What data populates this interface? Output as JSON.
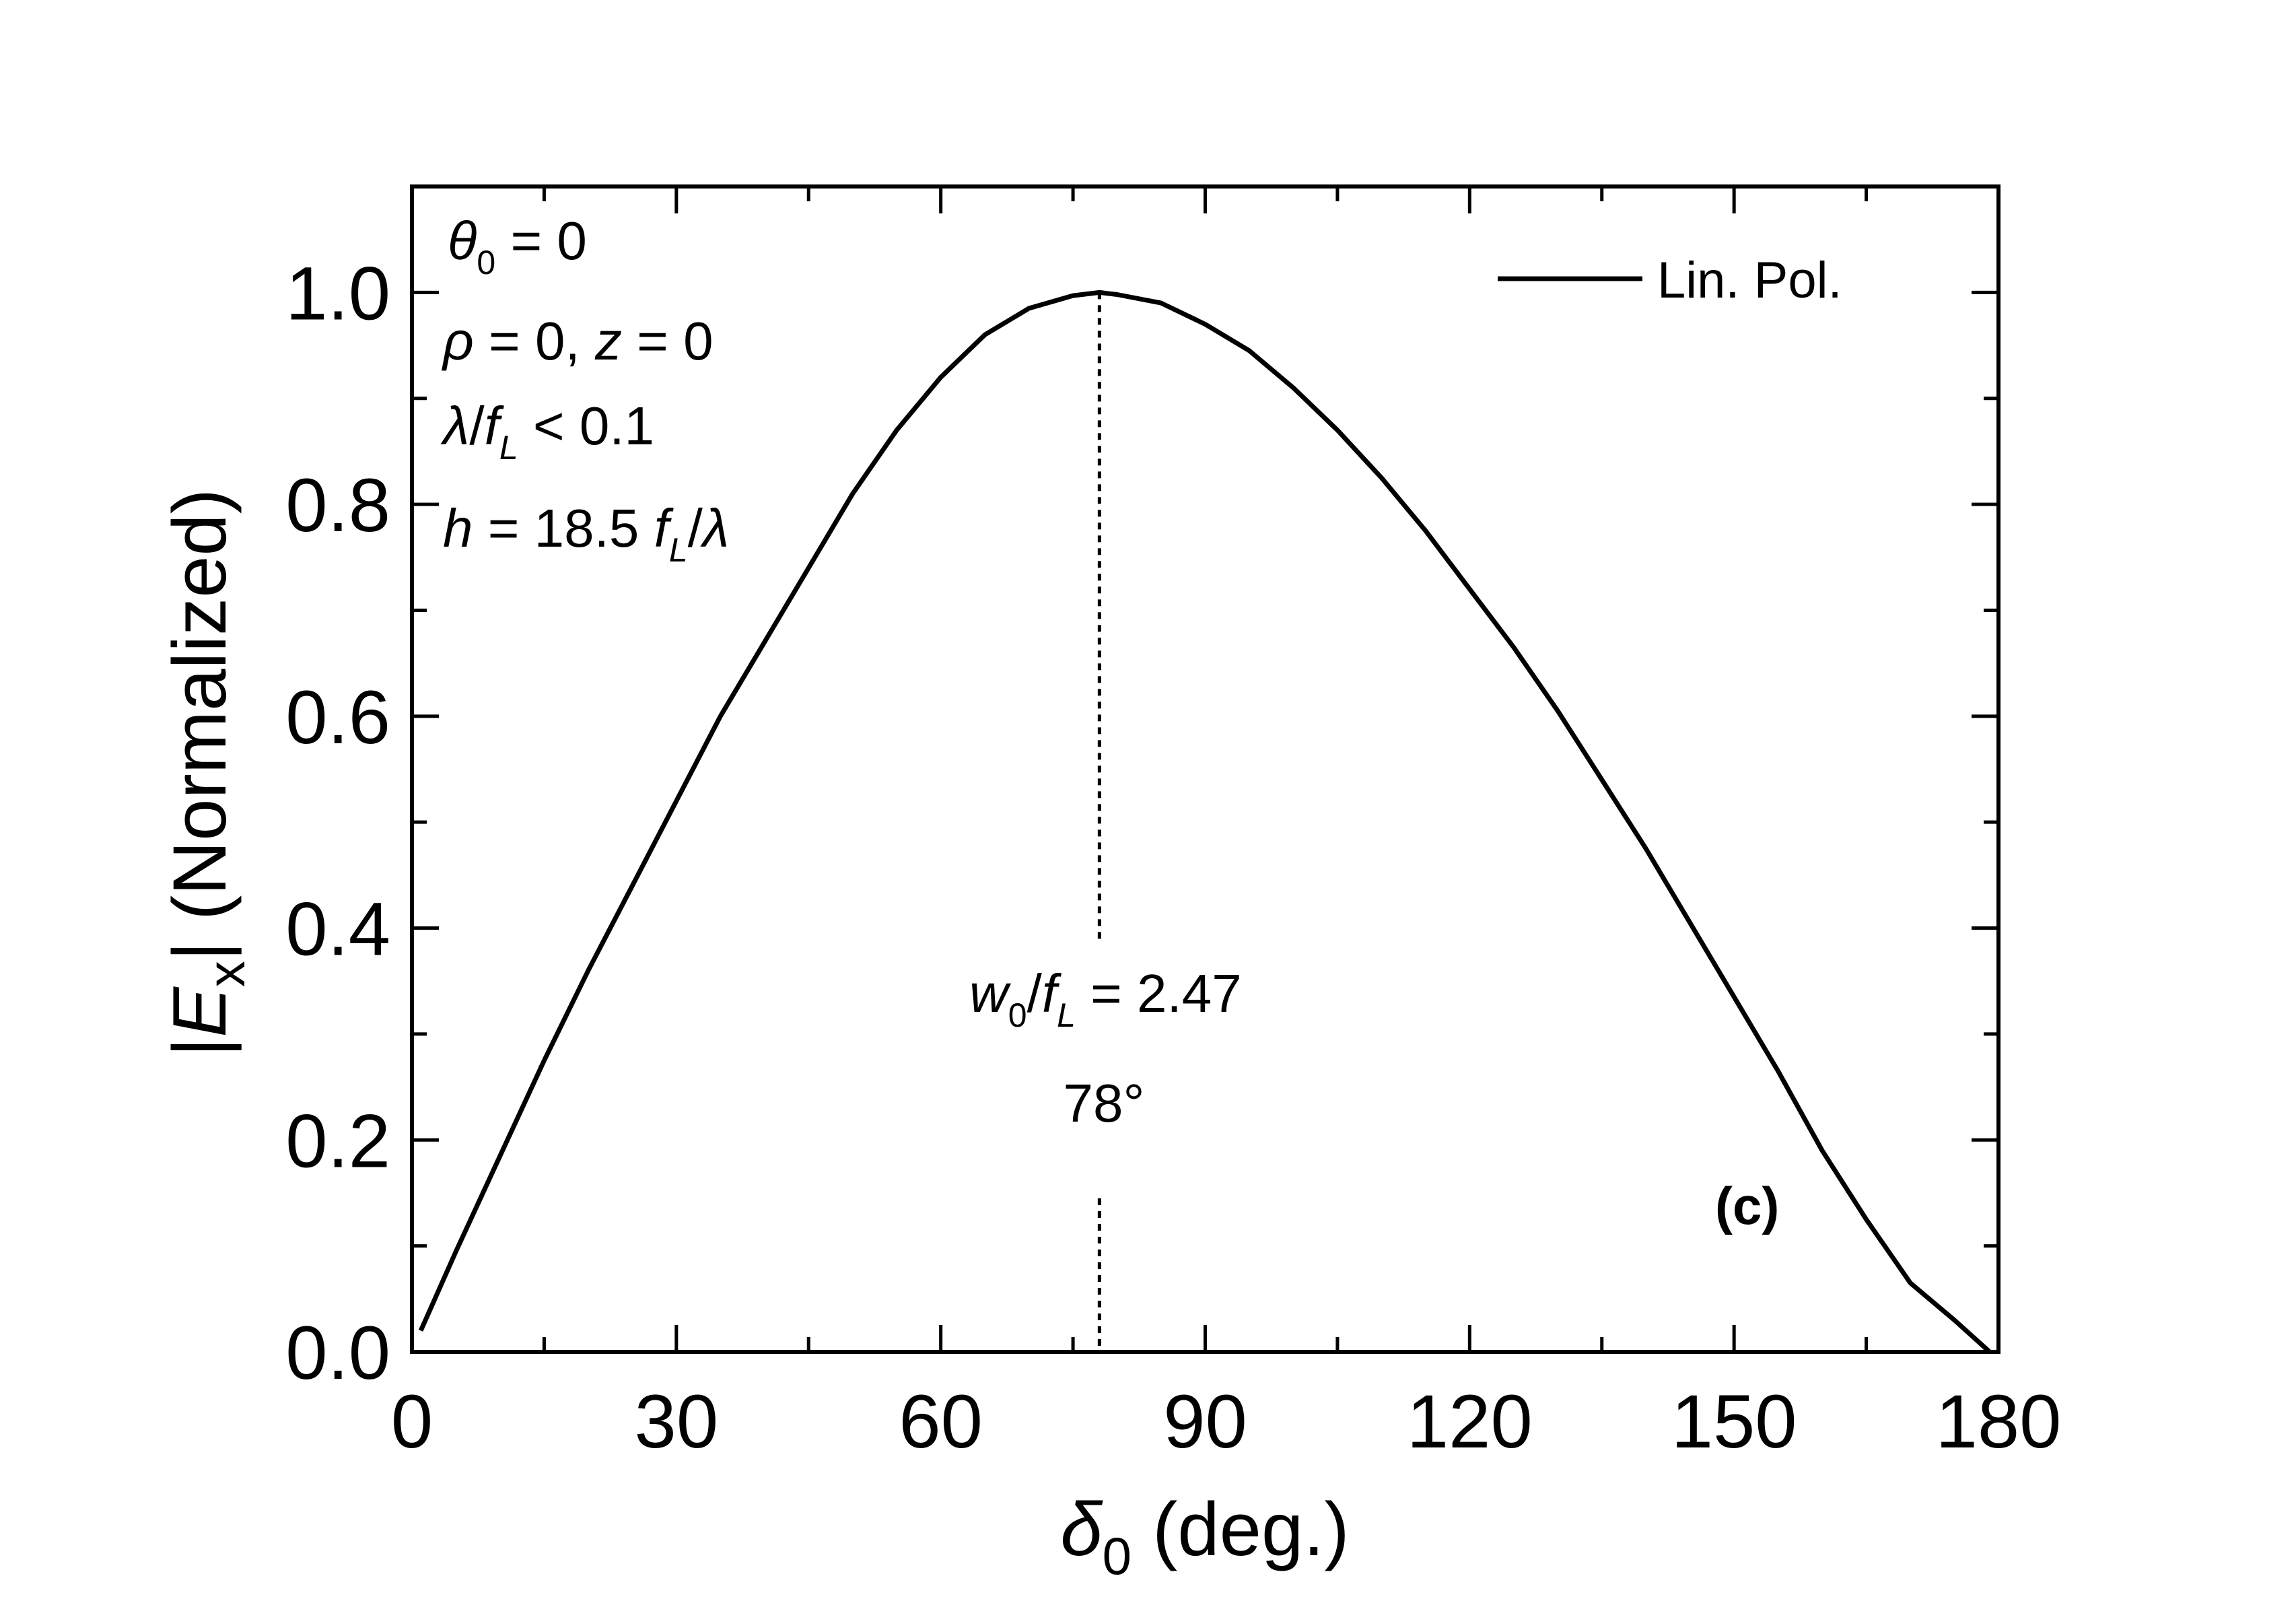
{
  "chart_data": {
    "type": "line",
    "xlabel": {
      "symbol": "δ",
      "sub": "0",
      "text": " (deg.)"
    },
    "ylabel": {
      "pre": "|",
      "symbol": "E",
      "sub": "x",
      "post": "| (Normalized)"
    },
    "xlim": [
      0,
      180
    ],
    "ylim": [
      0,
      1.1
    ],
    "xticks": [
      "0",
      "30",
      "60",
      "90",
      "120",
      "150",
      "180"
    ],
    "yticks": [
      "0.0",
      "0.2",
      "0.4",
      "0.6",
      "0.8",
      "1.0"
    ],
    "grid": false,
    "legend_position": "top-right",
    "series": [
      {
        "name": "Lin. Pol.",
        "color": "#000000",
        "x": [
          1,
          5,
          10,
          15,
          20,
          25,
          30,
          35,
          40,
          45,
          50,
          55,
          60,
          65,
          70,
          75,
          78,
          80,
          85,
          90,
          95,
          100,
          105,
          110,
          115,
          120,
          125,
          130,
          135,
          140,
          145,
          150,
          155,
          160,
          165,
          170,
          175,
          179
        ],
        "y": [
          0.02,
          0.095,
          0.185,
          0.275,
          0.36,
          0.44,
          0.52,
          0.6,
          0.67,
          0.74,
          0.81,
          0.87,
          0.92,
          0.96,
          0.985,
          0.997,
          1.0,
          0.998,
          0.99,
          0.97,
          0.945,
          0.91,
          0.87,
          0.825,
          0.775,
          0.72,
          0.665,
          0.605,
          0.54,
          0.475,
          0.405,
          0.335,
          0.265,
          0.19,
          0.125,
          0.065,
          0.03,
          0.0
        ]
      }
    ],
    "marker_line": {
      "x": 78,
      "style": "dotted"
    },
    "annotations": {
      "params": [
        {
          "sym": "θ",
          "sub": "0",
          "rest": " = 0"
        },
        {
          "sym": "ρ",
          "rest": " = 0, ",
          "sym2": "z",
          "rest2": " = 0"
        },
        {
          "sym": "λ",
          "mid": "/",
          "sym2": "f",
          "sub2": "L",
          "rest": " < 0.1"
        },
        {
          "sym": "h",
          "rest": " = 18.5 ",
          "sym2": "f",
          "sub2": "L",
          "rest2": "/",
          "sym3": "λ"
        }
      ],
      "marker_label": {
        "sym": "w",
        "sub": "0",
        "mid": "/",
        "sym2": "f",
        "sub2": "L",
        "rest": " = 2.47"
      },
      "marker_angle": "78°",
      "panel_label": "(c)"
    }
  }
}
